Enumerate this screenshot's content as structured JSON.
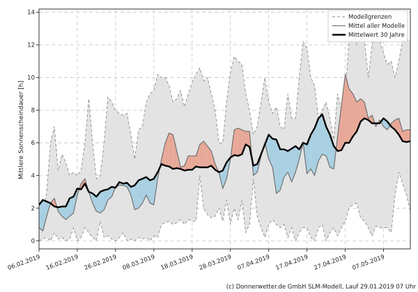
{
  "chart_data": {
    "type": "line",
    "ylabel": "Mittlere Sonnenscheindauer [h]",
    "xlabel": "",
    "ylim": [
      -0.5,
      14.2
    ],
    "xlim": [
      0,
      97
    ],
    "y_ticks": [
      0,
      2,
      4,
      6,
      8,
      10,
      12,
      14
    ],
    "x_ticks": [
      {
        "day": 0,
        "label": "06.02.2019"
      },
      {
        "day": 10,
        "label": "16.02.2019"
      },
      {
        "day": 20,
        "label": "26.02.2019"
      },
      {
        "day": 30,
        "label": "08.03.2019"
      },
      {
        "day": 40,
        "label": "18.03.2019"
      },
      {
        "day": 50,
        "label": "28.03.2019"
      },
      {
        "day": 60,
        "label": "07.04.2019"
      },
      {
        "day": 70,
        "label": "17.04.2019"
      },
      {
        "day": 80,
        "label": "27.04.2019"
      },
      {
        "day": 90,
        "label": "07.05.2019"
      }
    ],
    "grid": true,
    "legend": {
      "position": "top-right",
      "entries": [
        {
          "label": "Modellgrenzen",
          "style": "dashed-gray"
        },
        {
          "label": "Mittel aller Modelle",
          "style": "solid-gray"
        },
        {
          "label": "Mittelwert 30 Jahre",
          "style": "solid-black-thick"
        }
      ]
    },
    "colors": {
      "band_fill": "#e3e3e3",
      "bound_line": "#8a8a8a",
      "model_line": "#707070",
      "climate_line": "#000000",
      "above_fill": "#e8a898",
      "below_fill": "#a9d0e2",
      "grid": "#c4c4c4"
    },
    "series": [
      {
        "name": "Modellgrenzen (oben)",
        "x": [
          0,
          1,
          2,
          3,
          4,
          5,
          6,
          7,
          8,
          9,
          10,
          11,
          12,
          13,
          14,
          15,
          16,
          17,
          18,
          19,
          20,
          21,
          22,
          23,
          24,
          25,
          26,
          27,
          28,
          29,
          30,
          31,
          32,
          33,
          34,
          35,
          36,
          37,
          38,
          39,
          40,
          41,
          42,
          43,
          44,
          45,
          46,
          47,
          48,
          49,
          50,
          51,
          52,
          53,
          54,
          55,
          56,
          57,
          58,
          59,
          60,
          61,
          62,
          63,
          64,
          65,
          66,
          67,
          68,
          69,
          70,
          71,
          72,
          73,
          74,
          75,
          76,
          77,
          78,
          79,
          80,
          81,
          82,
          83,
          84,
          85,
          86,
          87,
          88,
          89,
          90,
          91,
          92,
          93,
          94,
          95,
          96,
          97
        ],
        "values": [
          2.3,
          1.5,
          3.0,
          6.0,
          7.0,
          4.3,
          5.3,
          4.8,
          4.0,
          4.2,
          4.0,
          4.3,
          6.0,
          8.7,
          6.0,
          3.8,
          4.0,
          6.0,
          8.8,
          8.5,
          8.0,
          7.8,
          7.7,
          7.8,
          6.5,
          5.0,
          6.8,
          7.0,
          8.5,
          9.0,
          9.2,
          10.2,
          10.0,
          10.0,
          9.5,
          8.5,
          8.7,
          9.2,
          8.2,
          9.0,
          9.7,
          10.2,
          10.6,
          9.8,
          10.0,
          9.0,
          8.0,
          6.0,
          6.0,
          8.5,
          10.3,
          11.3,
          11.0,
          10.8,
          9.0,
          8.0,
          6.5,
          7.0,
          8.5,
          10.0,
          8.5,
          7.8,
          8.2,
          7.0,
          6.8,
          9.0,
          7.5,
          7.5,
          10.0,
          12.2,
          11.8,
          10.0,
          9.5,
          7.5,
          8.0,
          8.5,
          7.5,
          6.2,
          9.0,
          8.0,
          9.0,
          12.3,
          13.5,
          12.0,
          12.5,
          12.3,
          10.0,
          12.0,
          13.0,
          12.3,
          11.5,
          10.8,
          11.0,
          10.0,
          11.0,
          12.3,
          12.3,
          12.3
        ]
      },
      {
        "name": "Modellgrenzen (unten)",
        "x": [
          0,
          1,
          2,
          3,
          4,
          5,
          6,
          7,
          8,
          9,
          10,
          11,
          12,
          13,
          14,
          15,
          16,
          17,
          18,
          19,
          20,
          21,
          22,
          23,
          24,
          25,
          26,
          27,
          28,
          29,
          30,
          31,
          32,
          33,
          34,
          35,
          36,
          37,
          38,
          39,
          40,
          41,
          42,
          43,
          44,
          45,
          46,
          47,
          48,
          49,
          50,
          51,
          52,
          53,
          54,
          55,
          56,
          57,
          58,
          59,
          60,
          61,
          62,
          63,
          64,
          65,
          66,
          67,
          68,
          69,
          70,
          71,
          72,
          73,
          74,
          75,
          76,
          77,
          78,
          79,
          80,
          81,
          82,
          83,
          84,
          85,
          86,
          87,
          88,
          89,
          90,
          91,
          92,
          93,
          94,
          95,
          96,
          97
        ],
        "values": [
          0.0,
          0.1,
          0.2,
          0.0,
          0.5,
          0.1,
          0.2,
          0.0,
          0.1,
          0.8,
          0.0,
          0.2,
          0.8,
          0.5,
          0.2,
          0.0,
          1.2,
          0.2,
          0.3,
          0.1,
          0.0,
          0.2,
          0.5,
          0.0,
          0.1,
          0.0,
          0.2,
          0.1,
          0.2,
          0.0,
          0.3,
          0.2,
          1.0,
          1.1,
          1.2,
          1.0,
          1.1,
          1.3,
          1.0,
          1.3,
          1.2,
          1.2,
          4.0,
          2.0,
          1.6,
          1.4,
          1.5,
          2.0,
          1.2,
          2.5,
          1.0,
          2.0,
          1.3,
          2.5,
          0.5,
          1.0,
          3.8,
          1.5,
          0.8,
          0.2,
          1.0,
          1.3,
          1.0,
          0.8,
          1.0,
          0.2,
          0.8,
          0.0,
          0.5,
          0.8,
          0.8,
          0.2,
          0.0,
          0.8,
          1.0,
          0.0,
          0.5,
          0.8,
          0.3,
          0.8,
          1.2,
          2.0,
          2.2,
          2.3,
          1.4,
          1.2,
          0.8,
          0.3,
          0.9,
          0.8,
          0.8,
          0.8,
          0.5,
          2.8,
          4.2,
          3.5,
          2.8,
          1.8
        ]
      },
      {
        "name": "Mittel aller Modelle",
        "x": [
          0,
          1,
          2,
          3,
          4,
          5,
          6,
          7,
          8,
          9,
          10,
          11,
          12,
          13,
          14,
          15,
          16,
          17,
          18,
          19,
          20,
          21,
          22,
          23,
          24,
          25,
          26,
          27,
          28,
          29,
          30,
          31,
          32,
          33,
          34,
          35,
          36,
          37,
          38,
          39,
          40,
          41,
          42,
          43,
          44,
          45,
          46,
          47,
          48,
          49,
          50,
          51,
          52,
          53,
          54,
          55,
          56,
          57,
          58,
          59,
          60,
          61,
          62,
          63,
          64,
          65,
          66,
          67,
          68,
          69,
          70,
          71,
          72,
          73,
          74,
          75,
          76,
          77,
          78,
          79,
          80,
          81,
          82,
          83,
          84,
          85,
          86,
          87,
          88,
          89,
          90,
          91,
          92,
          93,
          94,
          95,
          96,
          97
        ],
        "values": [
          0.8,
          0.6,
          1.5,
          2.3,
          2.6,
          1.8,
          1.5,
          1.3,
          1.5,
          1.7,
          2.8,
          3.5,
          3.8,
          3.0,
          2.3,
          1.8,
          1.7,
          1.9,
          2.5,
          2.7,
          3.3,
          3.4,
          3.4,
          3.3,
          2.8,
          1.9,
          2.0,
          2.3,
          2.8,
          2.3,
          2.2,
          3.8,
          5.0,
          6.0,
          6.6,
          6.5,
          5.5,
          4.5,
          4.6,
          5.2,
          5.2,
          5.2,
          5.9,
          6.1,
          5.8,
          5.5,
          4.7,
          4.2,
          3.2,
          3.8,
          5.0,
          6.8,
          6.9,
          6.8,
          6.7,
          6.7,
          4.0,
          4.2,
          5.2,
          6.0,
          5.0,
          4.5,
          2.9,
          3.1,
          3.9,
          4.2,
          3.6,
          4.2,
          5.0,
          6.0,
          4.1,
          4.4,
          4.0,
          4.9,
          5.3,
          5.2,
          4.5,
          4.4,
          6.4,
          8.3,
          10.2,
          9.3,
          9.0,
          8.5,
          8.7,
          8.5,
          7.5,
          7.7,
          7.0,
          7.4,
          7.0,
          6.8,
          7.2,
          7.4,
          7.5,
          6.7,
          6.8,
          6.8
        ]
      },
      {
        "name": "Mittelwert 30 Jahre",
        "x": [
          0,
          1,
          2,
          3,
          4,
          5,
          6,
          7,
          8,
          9,
          10,
          11,
          12,
          13,
          14,
          15,
          16,
          17,
          18,
          19,
          20,
          21,
          22,
          23,
          24,
          25,
          26,
          27,
          28,
          29,
          30,
          31,
          32,
          33,
          34,
          35,
          36,
          37,
          38,
          39,
          40,
          41,
          42,
          43,
          44,
          45,
          46,
          47,
          48,
          49,
          50,
          51,
          52,
          53,
          54,
          55,
          56,
          57,
          58,
          59,
          60,
          61,
          62,
          63,
          64,
          65,
          66,
          67,
          68,
          69,
          70,
          71,
          72,
          73,
          74,
          75,
          76,
          77,
          78,
          79,
          80,
          81,
          82,
          83,
          84,
          85,
          86,
          87,
          88,
          89,
          90,
          91,
          92,
          93,
          94,
          95,
          96,
          97
        ],
        "values": [
          2.2,
          2.5,
          2.4,
          2.3,
          2.1,
          2.05,
          2.1,
          2.1,
          2.6,
          2.7,
          3.2,
          3.15,
          3.5,
          3.0,
          2.9,
          2.7,
          3.0,
          3.1,
          3.15,
          3.3,
          3.25,
          3.6,
          3.5,
          3.55,
          3.3,
          3.4,
          3.7,
          3.8,
          3.9,
          3.7,
          3.8,
          4.2,
          4.7,
          4.6,
          4.55,
          4.4,
          4.45,
          4.4,
          4.3,
          4.35,
          4.35,
          4.55,
          4.5,
          4.5,
          4.5,
          4.6,
          4.35,
          4.2,
          4.3,
          4.8,
          5.1,
          5.25,
          5.2,
          5.3,
          5.9,
          5.75,
          4.6,
          4.7,
          5.3,
          5.9,
          6.5,
          6.25,
          6.2,
          5.6,
          5.6,
          5.5,
          5.65,
          5.8,
          5.6,
          6.0,
          5.9,
          6.5,
          6.9,
          7.5,
          7.75,
          7.0,
          6.5,
          5.8,
          5.5,
          5.55,
          6.0,
          6.0,
          6.4,
          6.7,
          7.3,
          7.5,
          7.4,
          7.2,
          7.2,
          7.2,
          7.5,
          7.3,
          7.0,
          6.8,
          6.5,
          6.1,
          6.05,
          6.1
        ]
      }
    ],
    "annotations": [
      "(c) Donnerwetter.de GmbH SLM-Modell, Lauf 29.01.2019 07 Uhr"
    ]
  }
}
